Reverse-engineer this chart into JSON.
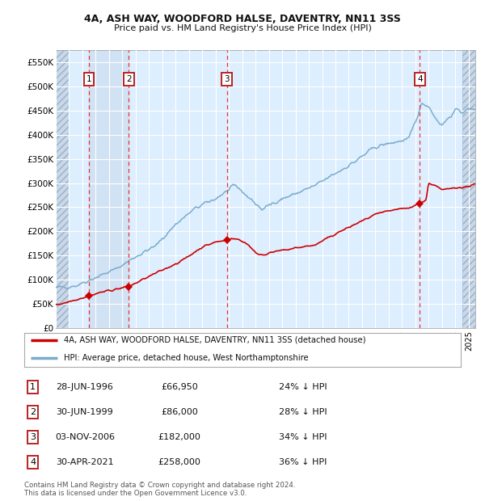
{
  "title1": "4A, ASH WAY, WOODFORD HALSE, DAVENTRY, NN11 3SS",
  "title2": "Price paid vs. HM Land Registry's House Price Index (HPI)",
  "ylim": [
    0,
    575000
  ],
  "xlim_start": 1994.0,
  "xlim_end": 2025.5,
  "yticks": [
    0,
    50000,
    100000,
    150000,
    200000,
    250000,
    300000,
    350000,
    400000,
    450000,
    500000,
    550000
  ],
  "ytick_labels": [
    "£0",
    "£50K",
    "£100K",
    "£150K",
    "£200K",
    "£250K",
    "£300K",
    "£350K",
    "£400K",
    "£450K",
    "£500K",
    "£550K"
  ],
  "background_color": "#ffffff",
  "chart_bg_color": "#ddeeff",
  "grid_color": "#ffffff",
  "red_line_color": "#cc0000",
  "blue_line_color": "#7aaccc",
  "sale_marker_color": "#cc0000",
  "dashed_line_color": "#ee3333",
  "hatch_left_end": 1995.0,
  "hatch_right_start": 2024.5,
  "ownership_span": [
    1996.49,
    1999.49
  ],
  "transactions": [
    {
      "label": "1",
      "year": 1996.49,
      "price": 66950
    },
    {
      "label": "2",
      "year": 1999.49,
      "price": 86000
    },
    {
      "label": "3",
      "year": 2006.84,
      "price": 182000
    },
    {
      "label": "4",
      "year": 2021.33,
      "price": 258000
    }
  ],
  "legend_entries": [
    {
      "color": "#cc0000",
      "label": "4A, ASH WAY, WOODFORD HALSE, DAVENTRY, NN11 3SS (detached house)"
    },
    {
      "color": "#7aaccc",
      "label": "HPI: Average price, detached house, West Northamptonshire"
    }
  ],
  "footnote": "Contains HM Land Registry data © Crown copyright and database right 2024.\nThis data is licensed under the Open Government Licence v3.0.",
  "table_rows": [
    {
      "num": "1",
      "date": "28-JUN-1996",
      "price": "£66,950",
      "pct": "24% ↓ HPI"
    },
    {
      "num": "2",
      "date": "30-JUN-1999",
      "price": "£86,000",
      "pct": "28% ↓ HPI"
    },
    {
      "num": "3",
      "date": "03-NOV-2006",
      "price": "£182,000",
      "pct": "34% ↓ HPI"
    },
    {
      "num": "4",
      "date": "30-APR-2021",
      "price": "£258,000",
      "pct": "36% ↓ HPI"
    }
  ]
}
